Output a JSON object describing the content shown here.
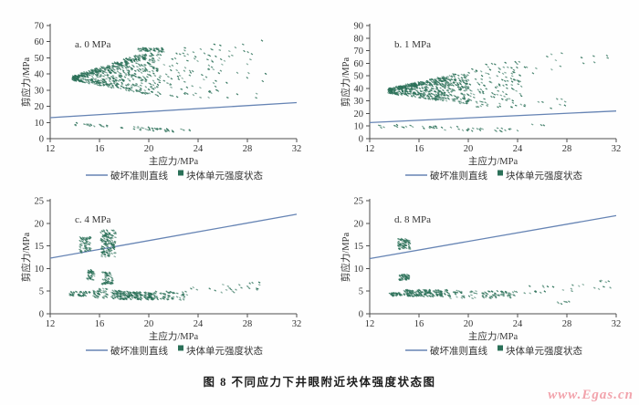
{
  "figure": {
    "caption": "图 8  不同应力下井眼附近块体强度状态图",
    "watermark": "www.Egas.cn"
  },
  "colors": {
    "scatter": "#2b7058",
    "line": "#6684b4",
    "axis": "#4d4d4d",
    "text": "#333333",
    "watermark": "#f2a3ac"
  },
  "legend": {
    "line_label": "破坏准则直线",
    "marker_label": "块体单元强度状态",
    "position": "bottom-center"
  },
  "chart_data": [
    {
      "type": "scatter",
      "id": "a",
      "title": "a. 0 MPa",
      "xlabel": "主应力/MPa",
      "ylabel": "剪应力/MPa",
      "xlim": [
        12,
        32
      ],
      "ylim": [
        0,
        70
      ],
      "xticks": [
        12,
        16,
        20,
        24,
        28,
        32
      ],
      "yticks": [
        0,
        10,
        20,
        30,
        40,
        50,
        60,
        70
      ],
      "grid": false,
      "series_line": {
        "name": "破坏准则直线",
        "points": [
          [
            12,
            13
          ],
          [
            32,
            22.3
          ]
        ]
      },
      "series_scatter": {
        "name": "块体单元强度状态",
        "clusters": [
          {
            "x": [
              13.8,
              21.0
            ],
            "y0": [
              36.0,
              38.8
            ],
            "y1": [
              26.0,
              55.0
            ],
            "n": 520
          },
          {
            "x": [
              13.8,
              19.8
            ],
            "y0": [
              36.5,
              38.8
            ],
            "y1": [
              49.0,
              53.5
            ],
            "n": 140
          },
          {
            "x": [
              19.0,
              21.2
            ],
            "y0": [
              54.0,
              56.2
            ],
            "y1": [
              54.0,
              56.2
            ],
            "n": 50
          },
          {
            "x": [
              21.0,
              26.0
            ],
            "y0": [
              25.0,
              55.0
            ],
            "y1": [
              25.0,
              60.0
            ],
            "n": 90
          },
          {
            "x": [
              26.0,
              29.5
            ],
            "y0": [
              24.0,
              60.0
            ],
            "y1": [
              25.0,
              66.0
            ],
            "n": 22
          },
          {
            "x": [
              14.0,
              23.5
            ],
            "y0": [
              7.5,
              9.8
            ],
            "y1": [
              3.5,
              5.5
            ],
            "n": 55
          }
        ]
      }
    },
    {
      "type": "scatter",
      "id": "b",
      "title": "b. 1 MPa",
      "xlabel": "主应力/MPa",
      "ylabel": "剪应力/MPa",
      "xlim": [
        12,
        32
      ],
      "ylim": [
        0,
        90
      ],
      "xticks": [
        12,
        16,
        20,
        24,
        28,
        32
      ],
      "yticks": [
        0,
        10,
        20,
        30,
        40,
        50,
        60,
        70,
        80,
        90
      ],
      "grid": false,
      "series_line": {
        "name": "破坏准则直线",
        "points": [
          [
            12,
            12.8
          ],
          [
            32,
            22.0
          ]
        ]
      },
      "series_scatter": {
        "name": "块体单元强度状态",
        "clusters": [
          {
            "x": [
              13.5,
              20.0
            ],
            "y0": [
              36.0,
              40.0
            ],
            "y1": [
              27.0,
              52.0
            ],
            "n": 480
          },
          {
            "x": [
              13.5,
              19.0
            ],
            "y0": [
              37.0,
              40.0
            ],
            "y1": [
              47.0,
              52.0
            ],
            "n": 120
          },
          {
            "x": [
              20.0,
              24.5
            ],
            "y0": [
              25.0,
              58.0
            ],
            "y1": [
              24.0,
              62.0
            ],
            "n": 130
          },
          {
            "x": [
              24.5,
              31.8
            ],
            "y0": [
              50.0,
              65.0
            ],
            "y1": [
              60.0,
              73.0
            ],
            "n": 16
          },
          {
            "x": [
              24.5,
              29.0
            ],
            "y0": [
              24.0,
              35.0
            ],
            "y1": [
              24.0,
              32.0
            ],
            "n": 10
          },
          {
            "x": [
              12.6,
              24.0
            ],
            "y0": [
              8.5,
              11.5
            ],
            "y1": [
              5.0,
              8.0
            ],
            "n": 50
          },
          {
            "x": [
              25.0,
              26.2
            ],
            "y0": [
              10.5,
              12.0
            ],
            "y1": [
              10.5,
              12.0
            ],
            "n": 4
          }
        ]
      }
    },
    {
      "type": "scatter",
      "id": "c",
      "title": "c. 4 MPa",
      "xlabel": "主应力/MPa",
      "ylabel": "剪应力/MPa",
      "xlim": [
        12,
        32
      ],
      "ylim": [
        0,
        25
      ],
      "xticks": [
        12,
        16,
        20,
        24,
        28,
        32
      ],
      "yticks": [
        0,
        5,
        10,
        15,
        20,
        25
      ],
      "grid": false,
      "series_line": {
        "name": "破坏准则直线",
        "points": [
          [
            12,
            12.3
          ],
          [
            32,
            22.0
          ]
        ]
      },
      "series_scatter": {
        "name": "块体单元强度状态",
        "clusters": [
          {
            "x": [
              14.4,
              15.3
            ],
            "y0": [
              13.5,
              17.0
            ],
            "y1": [
              13.5,
              17.0
            ],
            "n": 60
          },
          {
            "x": [
              16.1,
              17.3
            ],
            "y0": [
              12.5,
              18.5
            ],
            "y1": [
              12.5,
              18.5
            ],
            "n": 140
          },
          {
            "x": [
              15.0,
              15.6
            ],
            "y0": [
              7.5,
              9.8
            ],
            "y1": [
              7.5,
              9.8
            ],
            "n": 40
          },
          {
            "x": [
              16.2,
              17.1
            ],
            "y0": [
              6.5,
              9.2
            ],
            "y1": [
              6.5,
              9.2
            ],
            "n": 55
          },
          {
            "x": [
              13.6,
              15.2
            ],
            "y0": [
              3.9,
              4.9
            ],
            "y1": [
              3.9,
              4.9
            ],
            "n": 45
          },
          {
            "x": [
              15.5,
              16.7
            ],
            "y0": [
              3.4,
              5.6
            ],
            "y1": [
              3.4,
              5.6
            ],
            "n": 40
          },
          {
            "x": [
              17.0,
              20.5
            ],
            "y0": [
              3.2,
              5.2
            ],
            "y1": [
              3.1,
              4.6
            ],
            "n": 210
          },
          {
            "x": [
              20.5,
              23.0
            ],
            "y0": [
              3.0,
              5.0
            ],
            "y1": [
              3.0,
              5.0
            ],
            "n": 55
          },
          {
            "x": [
              22.8,
              29.0
            ],
            "y0": [
              3.6,
              5.6
            ],
            "y1": [
              5.0,
              7.4
            ],
            "n": 26
          }
        ]
      }
    },
    {
      "type": "scatter",
      "id": "d",
      "title": "d. 8 MPa",
      "xlabel": "主应力/MPa",
      "ylabel": "剪应力/MPa",
      "xlim": [
        12,
        32
      ],
      "ylim": [
        0,
        25
      ],
      "xticks": [
        12,
        16,
        20,
        24,
        28,
        32
      ],
      "yticks": [
        0,
        5,
        10,
        15,
        20,
        25
      ],
      "grid": false,
      "series_line": {
        "name": "破坏准则直线",
        "points": [
          [
            12,
            12.2
          ],
          [
            32,
            21.7
          ]
        ]
      },
      "series_scatter": {
        "name": "块体单元强度状态",
        "clusters": [
          {
            "x": [
              14.3,
              15.3
            ],
            "y0": [
              14.3,
              16.6
            ],
            "y1": [
              14.3,
              16.6
            ],
            "n": 70
          },
          {
            "x": [
              14.4,
              15.2
            ],
            "y0": [
              7.4,
              8.7
            ],
            "y1": [
              7.4,
              8.7
            ],
            "n": 45
          },
          {
            "x": [
              13.6,
              14.6
            ],
            "y0": [
              3.9,
              4.7
            ],
            "y1": [
              3.9,
              4.7
            ],
            "n": 32
          },
          {
            "x": [
              14.8,
              18.3
            ],
            "y0": [
              3.8,
              5.3
            ],
            "y1": [
              3.8,
              5.3
            ],
            "n": 170
          },
          {
            "x": [
              18.3,
              24.0
            ],
            "y0": [
              3.4,
              5.1
            ],
            "y1": [
              3.4,
              5.1
            ],
            "n": 90
          },
          {
            "x": [
              24.0,
              31.8
            ],
            "y0": [
              4.4,
              6.0
            ],
            "y1": [
              5.5,
              7.6
            ],
            "n": 26
          },
          {
            "x": [
              27.2,
              28.2
            ],
            "y0": [
              2.2,
              3.0
            ],
            "y1": [
              2.2,
              3.0
            ],
            "n": 6
          }
        ]
      }
    }
  ]
}
